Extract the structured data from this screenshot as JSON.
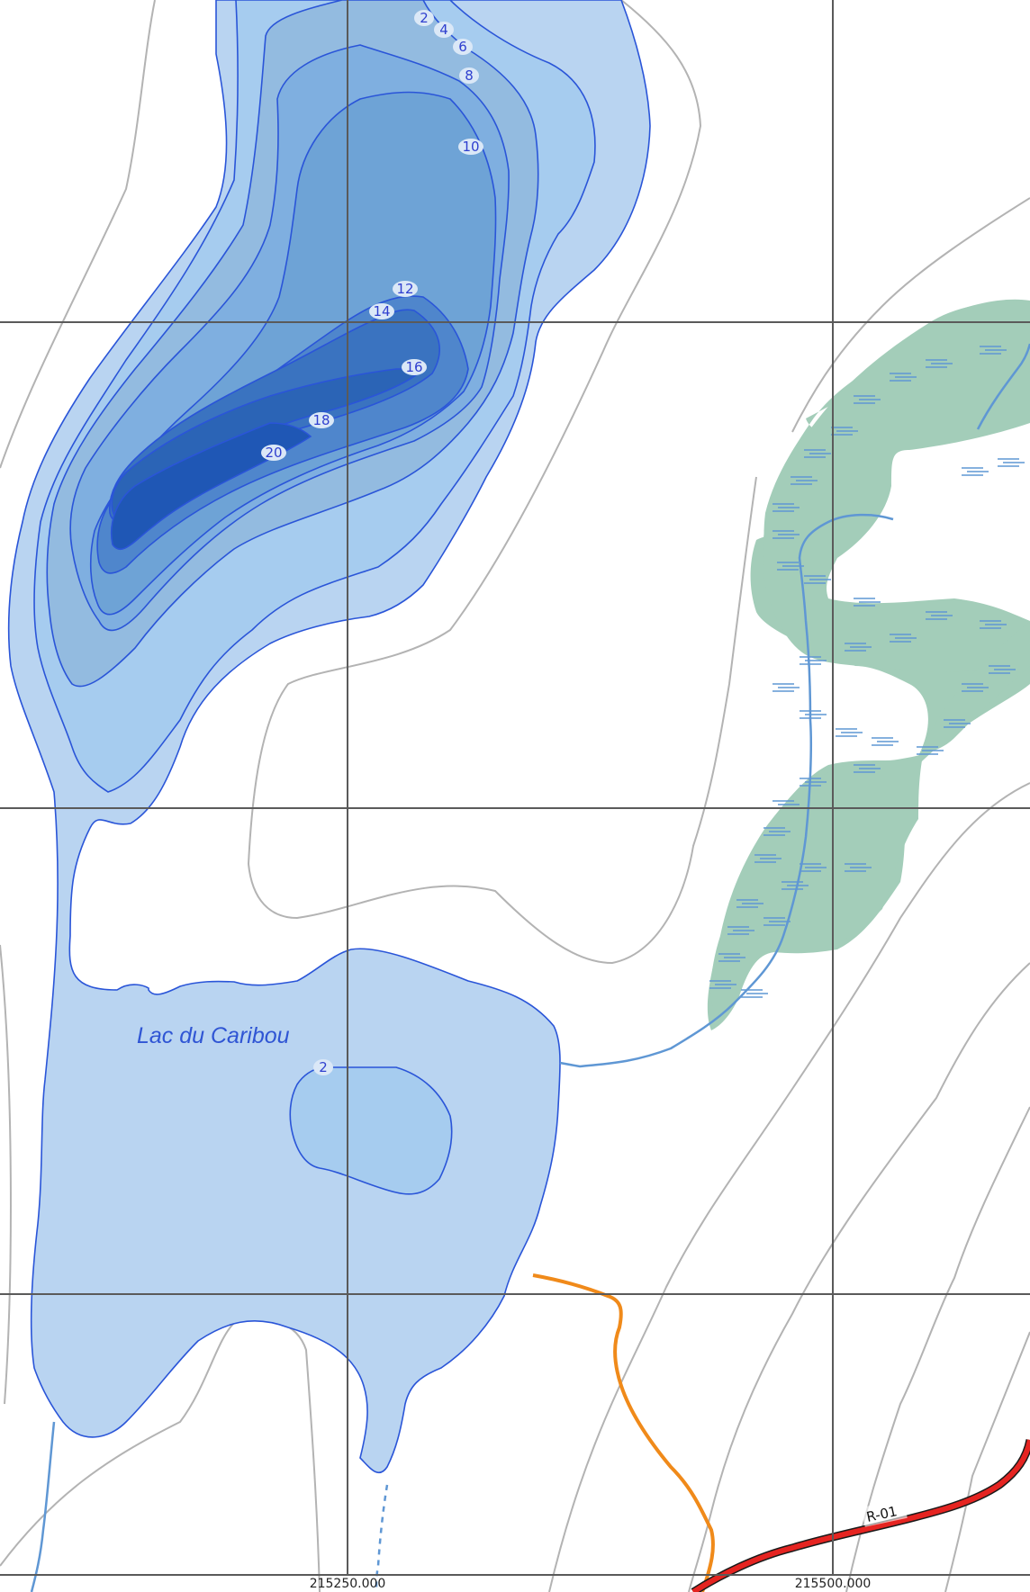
{
  "map": {
    "lake_name": "Lac du Caribou",
    "depth_labels": [
      "2",
      "4",
      "6",
      "8",
      "10",
      "12",
      "14",
      "16",
      "18",
      "20",
      "2"
    ],
    "road_label": "R-01",
    "x_coordinates": [
      "215250.000",
      "215500.000"
    ],
    "colors": {
      "water_shallow": "#b9d4f1",
      "water_deep": "#1f57b5",
      "contour_line": "#2a55d8",
      "terrain_contour": "#b3b3b3",
      "wetland": "#a3cdb9",
      "stream": "#5f97d4",
      "grid": "#5a5a5a",
      "trail": "#f08a1a",
      "road": "#e52421"
    }
  }
}
